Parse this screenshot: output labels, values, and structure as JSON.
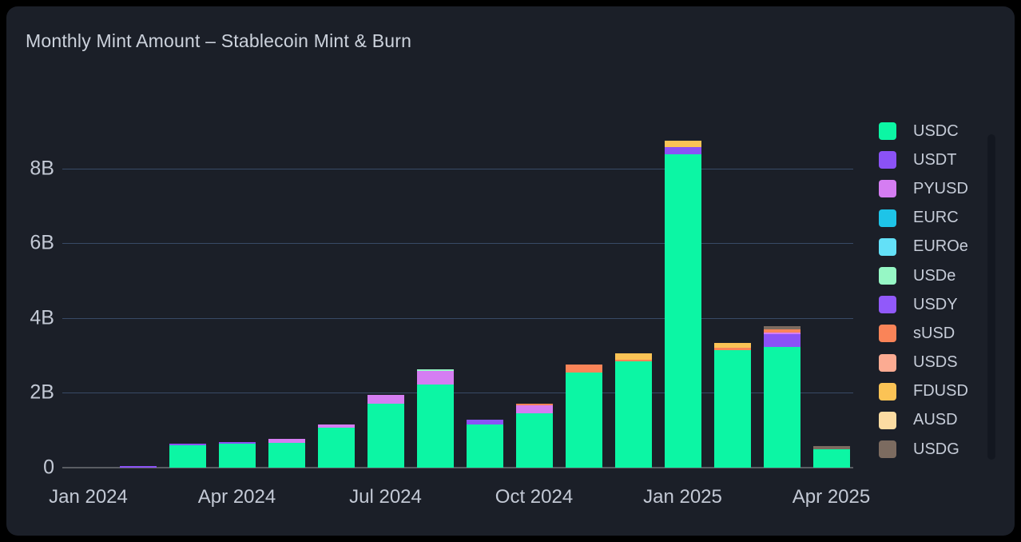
{
  "title": "Monthly Mint Amount – Stablecoin Mint & Burn",
  "colors": {
    "page_background": "#000000",
    "card_background": "#1b1f28",
    "gridline": "#384a66",
    "zero_line": "#5a5d63",
    "axis_text": "#c3c9d5",
    "title_text": "#ccd2dc",
    "legend_text": "#c6ccd8"
  },
  "legend": {
    "items": [
      {
        "label": "USDC",
        "color": "#0cf6a4"
      },
      {
        "label": "USDT",
        "color": "#8b52f6"
      },
      {
        "label": "PYUSD",
        "color": "#d57df2"
      },
      {
        "label": "EURC",
        "color": "#1ec4e8"
      },
      {
        "label": "EUROe",
        "color": "#63e0f7"
      },
      {
        "label": "USDe",
        "color": "#96f7c5"
      },
      {
        "label": "USDY",
        "color": "#9159fa"
      },
      {
        "label": "sUSD",
        "color": "#fa8458"
      },
      {
        "label": "USDS",
        "color": "#fcab92"
      },
      {
        "label": "FDUSD",
        "color": "#fbc355"
      },
      {
        "label": "AUSD",
        "color": "#fcdca2"
      },
      {
        "label": "USDG",
        "color": "#7c6b60"
      }
    ]
  },
  "chart_data": {
    "type": "bar",
    "stacked": true,
    "title": "Monthly Mint Amount – Stablecoin Mint & Burn",
    "xlabel": "",
    "ylabel": "",
    "unit": "B",
    "ylim": [
      0,
      9.5
    ],
    "grid": "horizontal",
    "legend_position": "right",
    "x": [
      "Jan 2024",
      "Feb 2024",
      "Mar 2024",
      "Apr 2024",
      "May 2024",
      "Jun 2024",
      "Jul 2024",
      "Aug 2024",
      "Sep 2024",
      "Oct 2024",
      "Nov 2024",
      "Dec 2024",
      "Jan 2025",
      "Feb 2025",
      "Mar 2025",
      "Apr 2025"
    ],
    "x_ticks": [
      {
        "index": 0,
        "label": "Jan 2024"
      },
      {
        "index": 3,
        "label": "Apr 2024"
      },
      {
        "index": 6,
        "label": "Jul 2024"
      },
      {
        "index": 9,
        "label": "Oct 2024"
      },
      {
        "index": 12,
        "label": "Jan 2025"
      },
      {
        "index": 15,
        "label": "Apr 2025"
      }
    ],
    "y_ticks": [
      {
        "value": 0,
        "label": "0"
      },
      {
        "value": 2,
        "label": "2B"
      },
      {
        "value": 4,
        "label": "4B"
      },
      {
        "value": 6,
        "label": "6B"
      },
      {
        "value": 8,
        "label": "8B"
      }
    ],
    "series": [
      {
        "name": "USDC",
        "color": "#0cf6a4",
        "values": [
          0,
          0,
          0.6,
          0.64,
          0.66,
          1.06,
          1.71,
          2.22,
          1.15,
          1.45,
          2.54,
          2.85,
          8.37,
          3.14,
          3.22,
          0.49
        ]
      },
      {
        "name": "USDT",
        "color": "#8b52f6",
        "values": [
          0,
          0.04,
          0.04,
          0.04,
          0,
          0,
          0,
          0,
          0.13,
          0,
          0,
          0,
          0.19,
          0,
          0.34,
          0
        ]
      },
      {
        "name": "PYUSD",
        "color": "#d57df2",
        "values": [
          0,
          0,
          0,
          0,
          0.11,
          0.09,
          0.23,
          0.36,
          0,
          0.21,
          0,
          0,
          0,
          0,
          0.06,
          0
        ]
      },
      {
        "name": "EURC",
        "color": "#1ec4e8",
        "values": [
          0,
          0,
          0,
          0,
          0,
          0,
          0,
          0,
          0,
          0,
          0,
          0,
          0,
          0,
          0,
          0
        ]
      },
      {
        "name": "EUROe",
        "color": "#63e0f7",
        "values": [
          0,
          0,
          0,
          0,
          0,
          0,
          0,
          0,
          0,
          0,
          0,
          0,
          0,
          0,
          0,
          0
        ]
      },
      {
        "name": "USDe",
        "color": "#96f7c5",
        "values": [
          0,
          0,
          0,
          0,
          0,
          0,
          0,
          0.05,
          0,
          0,
          0,
          0,
          0,
          0,
          0,
          0
        ]
      },
      {
        "name": "USDY",
        "color": "#9159fa",
        "values": [
          0,
          0,
          0,
          0,
          0,
          0,
          0,
          0,
          0,
          0,
          0,
          0,
          0,
          0,
          0,
          0
        ]
      },
      {
        "name": "sUSD",
        "color": "#fa8458",
        "values": [
          0,
          0,
          0,
          0,
          0,
          0,
          0,
          0,
          0,
          0.04,
          0.21,
          0.03,
          0,
          0.06,
          0.07,
          0
        ]
      },
      {
        "name": "USDS",
        "color": "#fcab92",
        "values": [
          0,
          0,
          0,
          0,
          0,
          0,
          0,
          0,
          0,
          0,
          0,
          0,
          0,
          0,
          0,
          0
        ]
      },
      {
        "name": "FDUSD",
        "color": "#fbc355",
        "values": [
          0,
          0,
          0,
          0,
          0,
          0,
          0,
          0,
          0,
          0,
          0,
          0.17,
          0.17,
          0.13,
          0,
          0
        ]
      },
      {
        "name": "AUSD",
        "color": "#fcdca2",
        "values": [
          0,
          0,
          0,
          0,
          0,
          0,
          0,
          0,
          0,
          0,
          0,
          0,
          0,
          0,
          0,
          0
        ]
      },
      {
        "name": "USDG",
        "color": "#7c6b60",
        "values": [
          0,
          0,
          0,
          0,
          0,
          0,
          0,
          0,
          0,
          0,
          0,
          0,
          0,
          0,
          0.09,
          0.09
        ]
      }
    ]
  }
}
